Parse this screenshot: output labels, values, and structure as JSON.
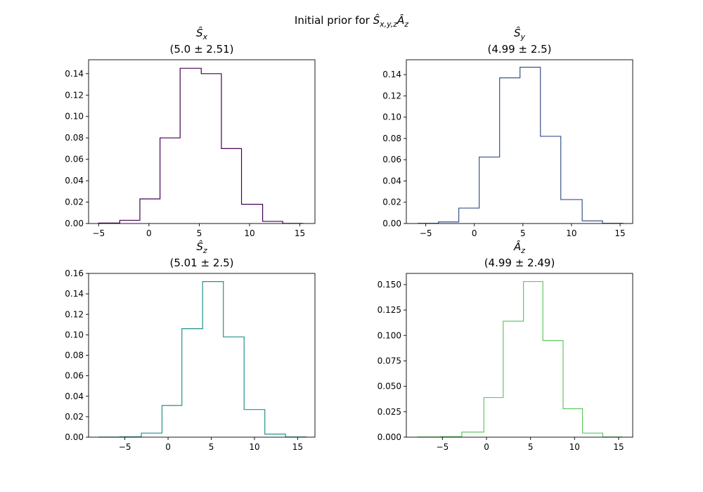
{
  "figure": {
    "suptitle": "Initial prior for Ŝx,y,zÂz"
  },
  "chart_data": [
    {
      "type": "histogram",
      "title": "Ŝx",
      "title_var": "S",
      "title_sub": "x",
      "subtitle": "(5.0 ± 2.51)",
      "color": "#440154",
      "bin_edges": [
        -5.0,
        -2.9,
        -0.9,
        1.1,
        3.1,
        5.2,
        7.2,
        9.2,
        11.3,
        13.3,
        15.3
      ],
      "values": [
        0.0004,
        0.003,
        0.023,
        0.08,
        0.145,
        0.14,
        0.07,
        0.018,
        0.002,
        0.0001
      ],
      "xlim": [
        -6.0,
        16.5
      ],
      "ylim": [
        0,
        0.153
      ],
      "xticks": [
        -5,
        0,
        5,
        10,
        15
      ],
      "yticks": [
        0.0,
        0.02,
        0.04,
        0.06,
        0.08,
        0.1,
        0.12,
        0.14
      ],
      "ytick_labels": [
        "0.00",
        "0.02",
        "0.04",
        "0.06",
        "0.08",
        "0.10",
        "0.12",
        "0.14"
      ]
    },
    {
      "type": "histogram",
      "title": "Ŝy",
      "title_var": "S",
      "title_sub": "y",
      "subtitle": "(4.99 ± 2.5)",
      "color": "#3b528b",
      "bin_edges": [
        -5.8,
        -3.7,
        -1.6,
        0.5,
        2.6,
        4.7,
        6.8,
        8.9,
        11.1,
        13.2,
        15.3
      ],
      "values": [
        0.0002,
        0.0015,
        0.0145,
        0.0625,
        0.137,
        0.147,
        0.082,
        0.0225,
        0.0025,
        0.0002
      ],
      "xlim": [
        -7.0,
        16.3
      ],
      "ylim": [
        0,
        0.154
      ],
      "xticks": [
        -5,
        0,
        5,
        10,
        15
      ],
      "yticks": [
        0.0,
        0.02,
        0.04,
        0.06,
        0.08,
        0.1,
        0.12,
        0.14
      ],
      "ytick_labels": [
        "0.00",
        "0.02",
        "0.04",
        "0.06",
        "0.08",
        "0.10",
        "0.12",
        "0.14"
      ]
    },
    {
      "type": "histogram",
      "title": "Ŝz",
      "title_var": "S",
      "title_sub": "z",
      "subtitle": "(5.01 ± 2.5)",
      "color": "#21918c",
      "bin_edges": [
        -8.0,
        -5.6,
        -3.1,
        -0.7,
        1.6,
        4.0,
        6.4,
        8.8,
        11.2,
        13.6,
        16.0
      ],
      "values": [
        0.0001,
        0.0004,
        0.004,
        0.031,
        0.106,
        0.152,
        0.098,
        0.027,
        0.003,
        0.0002
      ],
      "xlim": [
        -9.2,
        17.0
      ],
      "ylim": [
        0,
        0.16
      ],
      "xticks": [
        -5,
        0,
        5,
        10,
        15
      ],
      "yticks": [
        0.0,
        0.02,
        0.04,
        0.06,
        0.08,
        0.1,
        0.12,
        0.14,
        0.16
      ],
      "ytick_labels": [
        "0.00",
        "0.02",
        "0.04",
        "0.06",
        "0.08",
        "0.10",
        "0.12",
        "0.14",
        "0.16"
      ]
    },
    {
      "type": "histogram",
      "title": "Âz",
      "title_var": "A",
      "title_sub": "z",
      "subtitle": "(4.99 ± 2.49)",
      "color": "#5ec962",
      "bin_edges": [
        -7.8,
        -5.2,
        -2.8,
        -0.3,
        1.9,
        4.2,
        6.4,
        8.7,
        10.9,
        13.2,
        15.4
      ],
      "values": [
        0.0002,
        0.0005,
        0.005,
        0.039,
        0.114,
        0.153,
        0.095,
        0.028,
        0.004,
        0.0002
      ],
      "xlim": [
        -9.1,
        16.6
      ],
      "ylim": [
        0,
        0.161
      ],
      "xticks": [
        -5,
        0,
        5,
        10,
        15
      ],
      "yticks": [
        0.0,
        0.025,
        0.05,
        0.075,
        0.1,
        0.125,
        0.15
      ],
      "ytick_labels": [
        "0.000",
        "0.025",
        "0.050",
        "0.075",
        "0.100",
        "0.125",
        "0.150"
      ]
    }
  ]
}
